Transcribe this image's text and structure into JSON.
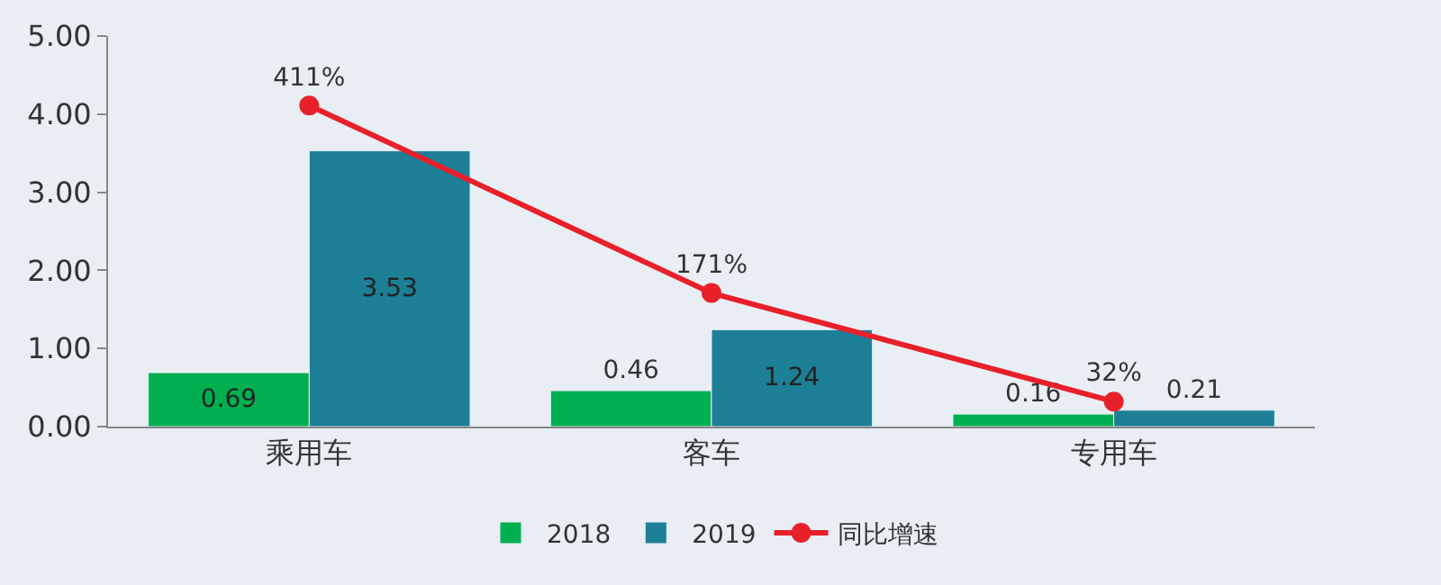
{
  "chart_data": {
    "type": "bar",
    "categories": [
      "乘用车",
      "客车",
      "专用车"
    ],
    "series": [
      {
        "name": "2018",
        "color": "#00b050",
        "values": [
          0.69,
          0.46,
          0.16
        ]
      },
      {
        "name": "2019",
        "color": "#1c7f96",
        "values": [
          3.53,
          1.24,
          0.21
        ]
      },
      {
        "name": "同比增速",
        "type": "line",
        "color": "#e8202a",
        "values": [
          4.11,
          1.71,
          0.32
        ],
        "value_labels": [
          "411%",
          "171%",
          "32%"
        ]
      }
    ],
    "data_labels": true,
    "ylim": [
      0,
      5
    ],
    "yticks": [
      {
        "value": 0,
        "label": "0.00"
      },
      {
        "value": 1,
        "label": "1.00"
      },
      {
        "value": 2,
        "label": "2.00"
      },
      {
        "value": 3,
        "label": "3.00"
      },
      {
        "value": 4,
        "label": "4.00"
      },
      {
        "value": 5,
        "label": "5.00"
      }
    ],
    "grid": false,
    "legend": "bottom",
    "marker": "circle"
  }
}
